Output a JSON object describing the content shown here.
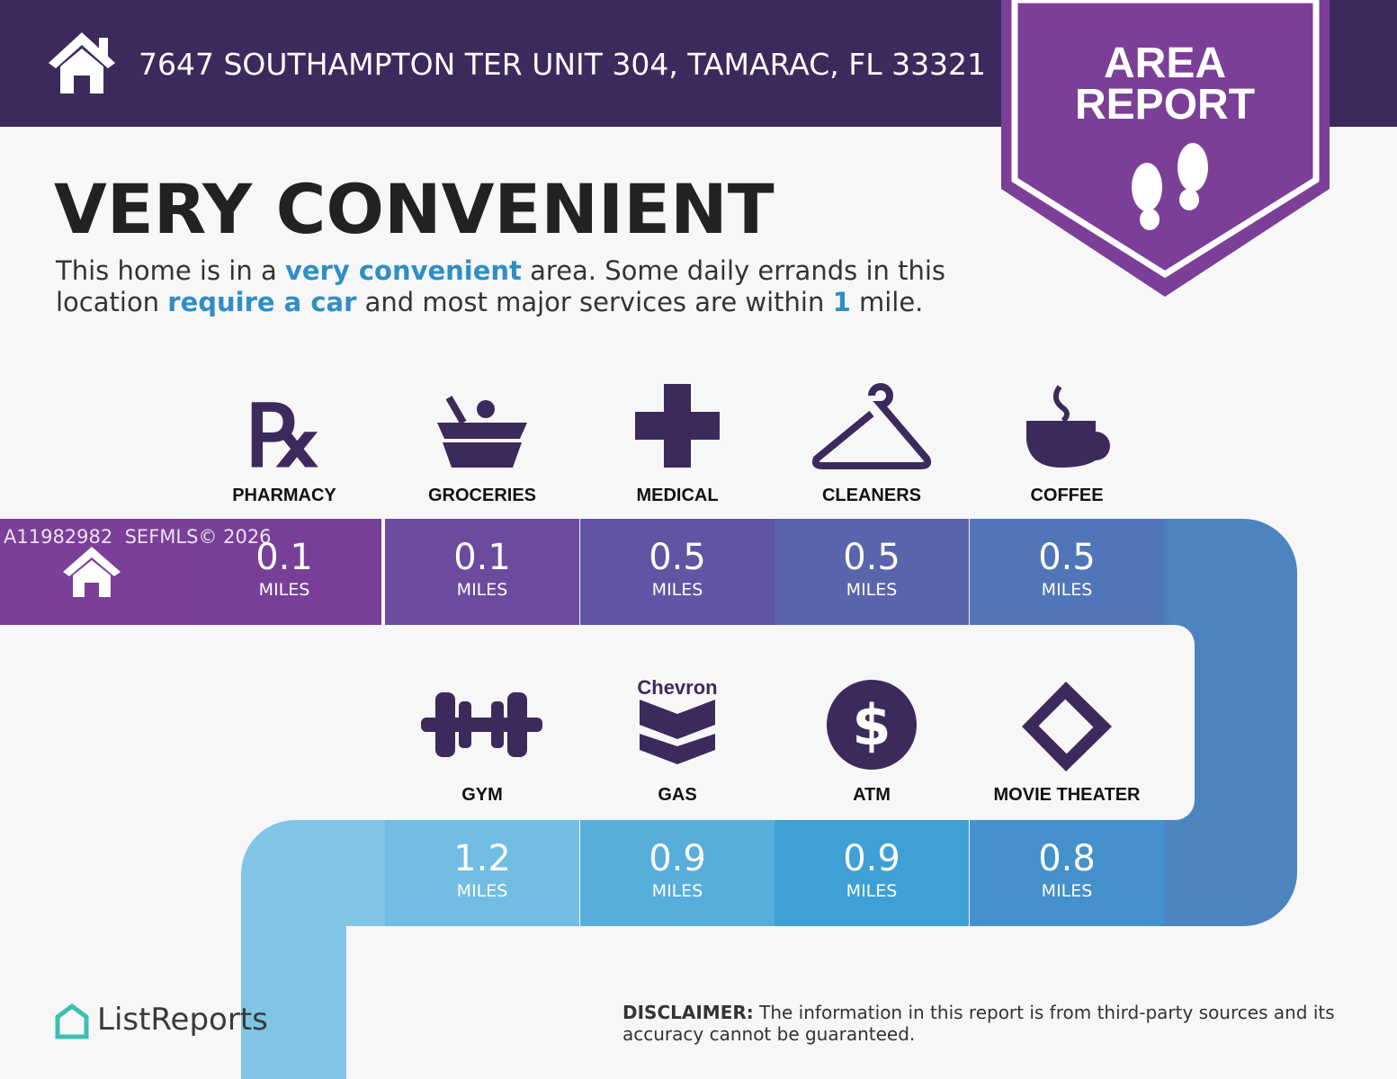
{
  "header": {
    "address": "7647 SOUTHAMPTON TER UNIT 304, TAMARAC, FL 33321"
  },
  "badge": {
    "line1": "AREA",
    "line2": "REPORT"
  },
  "title": "VERY CONVENIENT",
  "description": [
    {
      "text": "This home is in a ",
      "highlight": false
    },
    {
      "text": "very convenient",
      "highlight": true
    },
    {
      "text": " area. Some daily errands in this location ",
      "highlight": false
    },
    {
      "text": "require a car",
      "highlight": true
    },
    {
      "text": " and most major services are within ",
      "highlight": false
    },
    {
      "text": "1",
      "highlight": true
    },
    {
      "text": " mile.",
      "highlight": false
    }
  ],
  "distance_unit": "MILES",
  "rows": [
    [
      {
        "label": "PHARMACY",
        "distance": 0.1
      },
      {
        "label": "GROCERIES",
        "distance": 0.1
      },
      {
        "label": "MEDICAL",
        "distance": 0.5
      },
      {
        "label": "CLEANERS",
        "distance": 0.5
      },
      {
        "label": "COFFEE",
        "distance": 0.5
      }
    ],
    [
      {
        "label": "GYM",
        "distance": 1.2
      },
      {
        "label": "GAS",
        "distance": 0.9
      },
      {
        "label": "ATM",
        "distance": 0.9
      },
      {
        "label": "MOVIE THEATER",
        "distance": 0.8
      }
    ]
  ],
  "gas_brand": "Chevron",
  "watermark": "A11982982  SEFMLS© 2026",
  "logo": "ListReports",
  "disclaimer": {
    "label": "DISCLAIMER:",
    "text": " The information in this report is from third-party sources and its accuracy cannot be guaranteed."
  }
}
